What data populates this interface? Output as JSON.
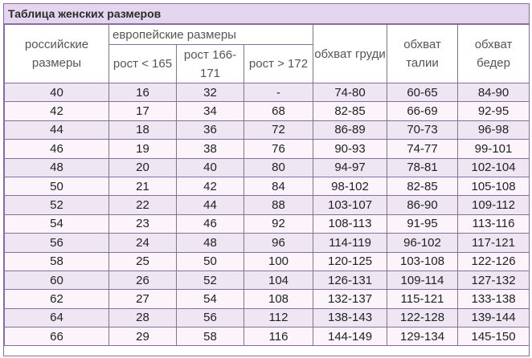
{
  "title": "Таблица женских размеров",
  "headers": {
    "ru_size": "российские размеры",
    "eu_group": "европейские размеры",
    "eu_h1": "рост < 165",
    "eu_h2": "рост 166-171",
    "eu_h3": "рост > 172",
    "chest": "обхват груди",
    "waist": "обхват талии",
    "hips": "обхват бедер"
  },
  "rows": [
    [
      "40",
      "16",
      "32",
      "-",
      "74-80",
      "60-65",
      "84-90"
    ],
    [
      "42",
      "17",
      "34",
      "68",
      "82-85",
      "66-69",
      "92-95"
    ],
    [
      "44",
      "18",
      "36",
      "72",
      "86-89",
      "70-73",
      "96-98"
    ],
    [
      "46",
      "19",
      "38",
      "76",
      "90-93",
      "74-77",
      "99-101"
    ],
    [
      "48",
      "20",
      "40",
      "80",
      "94-97",
      "78-81",
      "102-104"
    ],
    [
      "50",
      "21",
      "42",
      "84",
      "98-102",
      "82-85",
      "105-108"
    ],
    [
      "52",
      "22",
      "44",
      "88",
      "103-107",
      "86-90",
      "109-112"
    ],
    [
      "54",
      "23",
      "46",
      "92",
      "108-113",
      "91-95",
      "113-116"
    ],
    [
      "56",
      "24",
      "48",
      "96",
      "114-119",
      "96-102",
      "117-121"
    ],
    [
      "58",
      "25",
      "50",
      "100",
      "120-125",
      "103-108",
      "122-126"
    ],
    [
      "60",
      "26",
      "52",
      "104",
      "126-131",
      "109-114",
      "127-132"
    ],
    [
      "62",
      "27",
      "54",
      "108",
      "132-137",
      "115-121",
      "133-138"
    ],
    [
      "64",
      "28",
      "56",
      "112",
      "138-143",
      "122-128",
      "139-144"
    ],
    [
      "66",
      "29",
      "58",
      "116",
      "144-149",
      "129-134",
      "145-150"
    ]
  ]
}
